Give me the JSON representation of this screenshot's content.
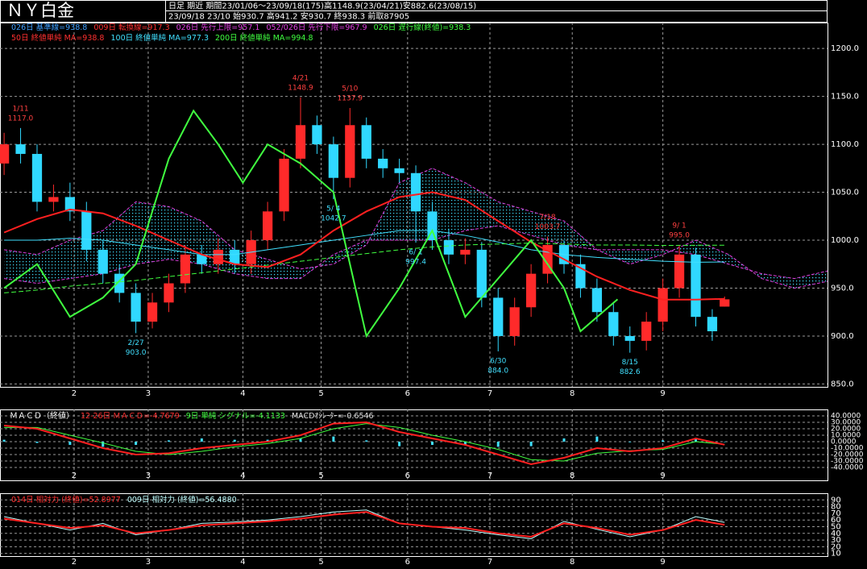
{
  "header": {
    "title": "ＮＹ白金",
    "info1": "日足  期近  期間23/01/06～23/09/18(175)高1148.9(23/04/21)安882.6(23/08/15)",
    "info2": "23/09/18 23/10 始930.7 高941.2 安930.7 終938.3 前取87905"
  },
  "chart_data": [
    {
      "type": "candlestick",
      "legend": [
        [
          {
            "text": "026日 基準線=938.8",
            "color": "#3fa0ff"
          },
          {
            "text": "009日 転換線=917.3",
            "color": "#ff3030"
          },
          {
            "text": "026日 先行上限=957.1",
            "color": "#e040e0"
          },
          {
            "text": "052/026日 先行下限=967.9",
            "color": "#e040e0"
          },
          {
            "text": "026日 遅行線(終値)=938.3",
            "color": "#40ff40"
          }
        ],
        [
          {
            "text": "50日 終値単純 MA=938.8",
            "color": "#ff3030"
          },
          {
            "text": "100日 終値単純 MA=977.3",
            "color": "#40e0ff"
          },
          {
            "text": "200日 終値単純 MA=994.8",
            "color": "#40ff40"
          }
        ]
      ],
      "xlim": [
        -1,
        200
      ],
      "ylim": [
        847,
        1227
      ],
      "xticks": [
        {
          "value": 17,
          "label": "2"
        },
        {
          "value": 35,
          "label": "3"
        },
        {
          "value": 58,
          "label": "4"
        },
        {
          "value": 77,
          "label": "5"
        },
        {
          "value": 98,
          "label": "6"
        },
        {
          "value": 118,
          "label": "7"
        },
        {
          "value": 138,
          "label": "8"
        },
        {
          "value": 160,
          "label": "9"
        }
      ],
      "yticks": [
        {
          "value": 850,
          "label": "850.0"
        },
        {
          "value": 900,
          "label": "900.0"
        },
        {
          "value": 950,
          "label": "950.0"
        },
        {
          "value": 1000,
          "label": "1000.0"
        },
        {
          "value": 1050,
          "label": "1050.0"
        },
        {
          "value": 1100,
          "label": "1100.0"
        },
        {
          "value": 1150,
          "label": "1150.0"
        },
        {
          "value": 1200,
          "label": "1200.0"
        }
      ],
      "grid": true,
      "up_color": "#ff2a2a",
      "down_color": "#30d8ff",
      "candles": {
        "x": [
          0,
          4,
          8,
          12,
          16,
          20,
          24,
          28,
          32,
          36,
          40,
          44,
          48,
          52,
          56,
          60,
          64,
          68,
          72,
          76,
          80,
          84,
          88,
          92,
          96,
          100,
          104,
          108,
          112,
          116,
          120,
          124,
          128,
          132,
          136,
          140,
          144,
          148,
          152,
          156,
          160,
          164,
          168,
          172,
          175
        ],
        "open": [
          1080,
          1100,
          1090,
          1040,
          1045,
          1030,
          990,
          965,
          945,
          915,
          935,
          955,
          985,
          975,
          990,
          975,
          1000,
          1030,
          1085,
          1120,
          1100,
          1065,
          1120,
          1085,
          1075,
          1070,
          1030,
          1000,
          985,
          990,
          940,
          900,
          930,
          965,
          995,
          975,
          950,
          925,
          900,
          895,
          915,
          950,
          985,
          920,
          930.7
        ],
        "high": [
          1112,
          1117,
          1100,
          1058,
          1060,
          1040,
          1000,
          975,
          955,
          945,
          965,
          995,
          995,
          1002,
          1000,
          1010,
          1040,
          1095,
          1148.9,
          1130,
          1108,
          1137.9,
          1128,
          1095,
          1085,
          1078,
          1040,
          1012,
          1002,
          998,
          950,
          940,
          975,
          1003.7,
          1000,
          985,
          960,
          935,
          910,
          925,
          960,
          995,
          992,
          928,
          941.2
        ],
        "low": [
          1068,
          1080,
          1030,
          1030,
          1020,
          978,
          955,
          935,
          903,
          908,
          925,
          945,
          965,
          965,
          965,
          965,
          990,
          1020,
          1075,
          1090,
          1042.7,
          1055,
          1075,
          1065,
          1060,
          997.4,
          990,
          975,
          975,
          930,
          884,
          890,
          920,
          955,
          965,
          940,
          915,
          890,
          882.6,
          885,
          905,
          940,
          910,
          895,
          930.7
        ],
        "close": [
          1100,
          1090,
          1040,
          1045,
          1030,
          990,
          965,
          945,
          915,
          935,
          955,
          985,
          975,
          990,
          975,
          1000,
          1030,
          1085,
          1120,
          1100,
          1065,
          1120,
          1085,
          1075,
          1070,
          1030,
          1000,
          985,
          990,
          940,
          900,
          930,
          965,
          995,
          975,
          950,
          925,
          900,
          895,
          915,
          950,
          985,
          920,
          905,
          938.3
        ]
      },
      "cloud": {
        "color": "#40e0ff",
        "x": [
          0,
          8,
          16,
          24,
          32,
          40,
          48,
          56,
          64,
          72,
          80,
          88,
          96,
          104,
          112,
          120,
          128,
          136,
          144,
          152,
          160,
          168,
          176,
          184,
          192,
          200
        ],
        "upper": {
          "color": "#e040e0",
          "values": [
            990,
            985,
            1000,
            1010,
            1040,
            1035,
            1020,
            990,
            980,
            970,
            975,
            995,
            1060,
            1075,
            1060,
            1040,
            1030,
            1020,
            990,
            975,
            985,
            1000,
            985,
            960,
            950,
            957.1
          ]
        },
        "lower": {
          "color": "#e040e0",
          "values": [
            960,
            955,
            960,
            965,
            975,
            980,
            975,
            965,
            960,
            960,
            985,
            1000,
            1000,
            1000,
            1010,
            1015,
            1005,
            995,
            990,
            990,
            990,
            985,
            975,
            965,
            960,
            967.9
          ]
        }
      },
      "lines": [
        {
          "color": "#40e0ff",
          "width": 1,
          "x": [
            0,
            8,
            16,
            24,
            32,
            40,
            48,
            56,
            64,
            72,
            80,
            88,
            96,
            104,
            112,
            120,
            128,
            136,
            144,
            152,
            160,
            168,
            175
          ],
          "values": [
            1000,
            1000,
            1002,
            1000,
            995,
            990,
            985,
            985,
            990,
            995,
            1000,
            1005,
            1010,
            1010,
            1005,
            998,
            990,
            985,
            982,
            980,
            978,
            977,
            977.3
          ]
        },
        {
          "color": "#40ff40",
          "width": 1,
          "dash": true,
          "x": [
            0,
            8,
            16,
            24,
            32,
            40,
            48,
            56,
            64,
            72,
            80,
            88,
            96,
            104,
            112,
            120,
            128,
            136,
            144,
            152,
            160,
            168,
            175
          ],
          "values": [
            945,
            948,
            952,
            955,
            958,
            962,
            966,
            970,
            974,
            978,
            982,
            986,
            990,
            993,
            995,
            996,
            997,
            996,
            995,
            995,
            994.5,
            994.7,
            994.8
          ]
        },
        {
          "color": "#ff2020",
          "width": 2,
          "x": [
            0,
            8,
            16,
            24,
            32,
            40,
            48,
            56,
            64,
            72,
            80,
            88,
            96,
            104,
            112,
            120,
            128,
            136,
            144,
            152,
            160,
            168,
            175
          ],
          "values": [
            1008,
            1022,
            1032,
            1028,
            1015,
            1000,
            985,
            975,
            972,
            985,
            1010,
            1030,
            1045,
            1050,
            1042,
            1020,
            998,
            980,
            962,
            948,
            938,
            938,
            938.8
          ]
        },
        {
          "color": "#40ff40",
          "width": 2,
          "x": [
            0,
            8,
            16,
            24,
            32,
            40,
            46,
            52,
            58,
            64,
            72,
            80,
            88,
            96,
            104,
            112,
            120,
            128,
            136,
            140,
            149
          ],
          "values": [
            950,
            975,
            920,
            940,
            975,
            1085,
            1135,
            1100,
            1060,
            1100,
            1080,
            1050,
            900,
            950,
            1010,
            920,
            960,
            1000,
            950,
            905,
            938.3
          ]
        }
      ],
      "annotation_colors": {
        "high": "#ff4040",
        "low": "#40e0ff"
      },
      "annotations": [
        {
          "date": "1/11",
          "x": 4,
          "price": 1117,
          "price_label": "1117.0",
          "side": "high"
        },
        {
          "date": "2/27",
          "x": 32,
          "price": 903,
          "price_label": "903.0",
          "side": "low"
        },
        {
          "date": "4/21",
          "x": 72,
          "price": 1148.9,
          "price_label": "1148.9",
          "side": "high"
        },
        {
          "date": "5/ 4",
          "x": 80,
          "price": 1042.7,
          "price_label": "1042.7",
          "side": "low"
        },
        {
          "date": "5/10",
          "x": 84,
          "price": 1137.9,
          "price_label": "1137.9",
          "side": "high"
        },
        {
          "date": "6/ 1",
          "x": 100,
          "price": 997.4,
          "price_label": "997.4",
          "side": "low"
        },
        {
          "date": "6/30",
          "x": 120,
          "price": 884,
          "price_label": "884.0",
          "side": "low"
        },
        {
          "date": "7/18",
          "x": 132,
          "price": 1003.7,
          "price_label": "1003.7",
          "side": "high"
        },
        {
          "date": "8/15",
          "x": 152,
          "price": 882.6,
          "price_label": "882.6",
          "side": "low"
        },
        {
          "date": "9/ 1",
          "x": 164,
          "price": 995,
          "price_label": "995.0",
          "side": "high"
        }
      ]
    },
    {
      "type": "macd",
      "title": "ＭＡＣＤ（終値）",
      "legend": [
        [
          {
            "text": "12-26日 ＭＡＣＤ=-4.7679",
            "color": "#ff3030"
          },
          {
            "text": "9日 単純 シグナル=-4.1133",
            "color": "#40ff40"
          },
          {
            "text": "MACDｵｼﾚｰﾀｰ=-0.6546",
            "color": "#e0e0e0"
          }
        ]
      ],
      "xlim": [
        -1,
        200
      ],
      "ylim": [
        -60,
        50
      ],
      "xticks": [
        {
          "value": 17,
          "label": "2"
        },
        {
          "value": 35,
          "label": "3"
        },
        {
          "value": 58,
          "label": "4"
        },
        {
          "value": 77,
          "label": "5"
        },
        {
          "value": 98,
          "label": "6"
        },
        {
          "value": 118,
          "label": "7"
        },
        {
          "value": 138,
          "label": "8"
        },
        {
          "value": 160,
          "label": "9"
        }
      ],
      "yticks": [
        {
          "value": 40,
          "label": "40.0000"
        },
        {
          "value": 30,
          "label": "30.0000"
        },
        {
          "value": 20,
          "label": "20.0000"
        },
        {
          "value": 10,
          "label": "10.0000"
        },
        {
          "value": 0,
          "label": "0.0000"
        },
        {
          "value": -10,
          "label": "-10.0000"
        },
        {
          "value": -20,
          "label": "-20.0000"
        },
        {
          "value": -30,
          "label": "-30.0000"
        },
        {
          "value": -40,
          "label": "-40.0000"
        }
      ],
      "grid": true,
      "x": [
        0,
        8,
        16,
        24,
        32,
        40,
        48,
        56,
        64,
        72,
        80,
        88,
        96,
        104,
        112,
        120,
        128,
        136,
        144,
        152,
        160,
        168,
        175
      ],
      "bars": {
        "color": "#40e0ff",
        "values": [
          3,
          -2,
          -5,
          -8,
          -5,
          2,
          5,
          3,
          3,
          5,
          8,
          2,
          -7,
          -5,
          -5,
          -8,
          -7,
          5,
          8,
          -1,
          2,
          5,
          -0.6546
        ]
      },
      "lines": [
        {
          "color": "#40ff40",
          "width": 1,
          "values": [
            22,
            22,
            10,
            -2,
            -15,
            -20,
            -15,
            -8,
            -3,
            5,
            20,
            28,
            22,
            10,
            0,
            -12,
            -28,
            -30,
            -18,
            -14,
            -12,
            0,
            -4.1133
          ]
        },
        {
          "color": "#ff2020",
          "width": 2,
          "values": [
            25,
            20,
            5,
            -10,
            -20,
            -18,
            -10,
            -5,
            0,
            10,
            28,
            30,
            15,
            5,
            -5,
            -20,
            -35,
            -25,
            -10,
            -15,
            -10,
            5,
            -4.7679
          ]
        }
      ]
    },
    {
      "type": "line",
      "legend": [
        [
          {
            "text": "014日 相対力 (終値)=52.8977",
            "color": "#ff3030"
          },
          {
            "text": "009日 相対力 (終値)=56.4880",
            "color": "#c0ffff"
          }
        ]
      ],
      "xlim": [
        -1,
        200
      ],
      "ylim": [
        6,
        100
      ],
      "xticks": [
        {
          "value": 17,
          "label": "2"
        },
        {
          "value": 35,
          "label": "3"
        },
        {
          "value": 58,
          "label": "4"
        },
        {
          "value": 77,
          "label": "5"
        },
        {
          "value": 98,
          "label": "6"
        },
        {
          "value": 118,
          "label": "7"
        },
        {
          "value": 138,
          "label": "8"
        },
        {
          "value": 160,
          "label": "9"
        }
      ],
      "yticks": [
        90,
        80,
        70,
        60,
        50,
        40,
        30,
        20,
        10
      ],
      "grid": true,
      "x": [
        0,
        8,
        16,
        24,
        32,
        40,
        48,
        56,
        64,
        72,
        80,
        88,
        96,
        104,
        112,
        120,
        128,
        136,
        144,
        152,
        160,
        168,
        175
      ],
      "lines": [
        {
          "color": "#c0ffff",
          "width": 1,
          "values": [
            65,
            55,
            45,
            55,
            38,
            45,
            55,
            57,
            60,
            65,
            72,
            75,
            55,
            50,
            45,
            38,
            32,
            58,
            46,
            35,
            45,
            65,
            56.488
          ]
        },
        {
          "color": "#ff2020",
          "width": 2,
          "values": [
            62,
            55,
            48,
            52,
            40,
            45,
            52,
            55,
            58,
            62,
            68,
            72,
            55,
            50,
            48,
            40,
            35,
            55,
            48,
            38,
            45,
            60,
            52.8977
          ]
        }
      ]
    }
  ]
}
